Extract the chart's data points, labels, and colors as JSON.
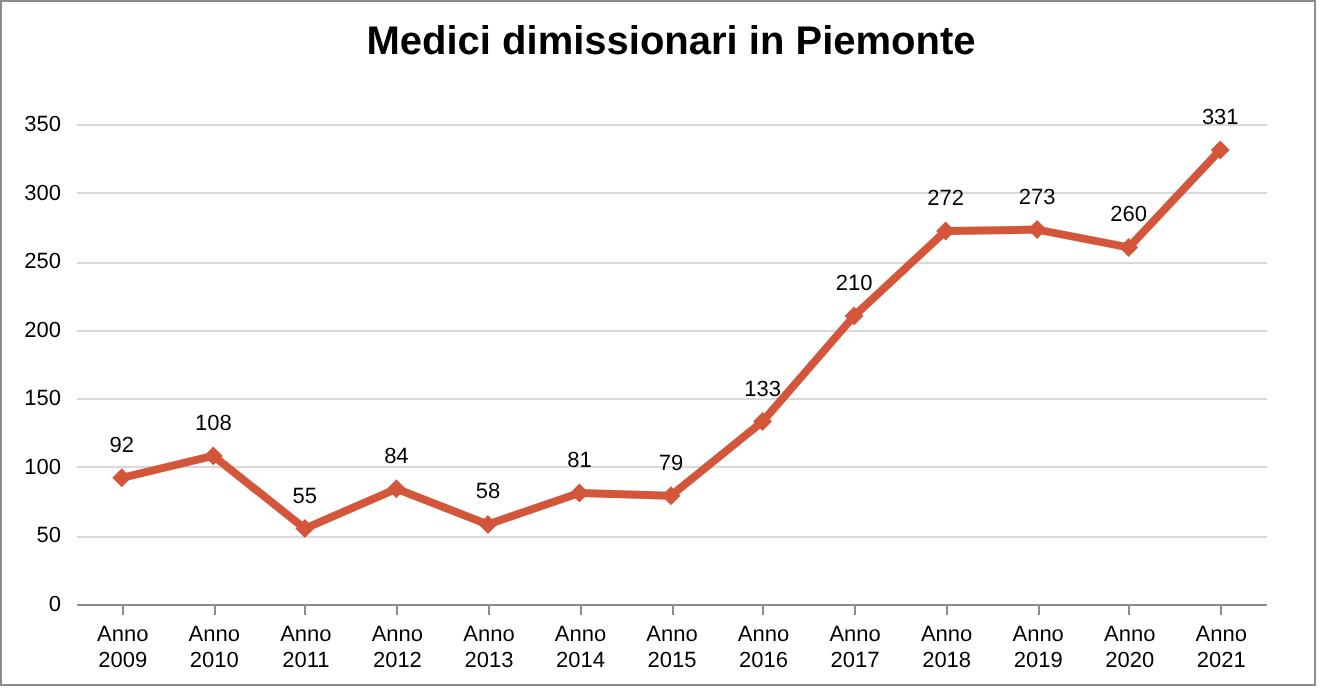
{
  "chart_data": {
    "type": "line",
    "title": "Medici dimissionari in Piemonte",
    "categories": [
      "Anno 2009",
      "Anno 2010",
      "Anno 2011",
      "Anno 2012",
      "Anno 2013",
      "Anno 2014",
      "Anno 2015",
      "Anno 2016",
      "Anno 2017",
      "Anno 2018",
      "Anno 2019",
      "Anno 2020",
      "Anno 2021"
    ],
    "series": [
      {
        "color": "#d4563a",
        "values": [
          92,
          108,
          55,
          84,
          58,
          81,
          79,
          133,
          210,
          272,
          273,
          260,
          331
        ]
      }
    ],
    "ylim": [
      0,
      350
    ],
    "yticks": [
      0,
      50,
      100,
      150,
      200,
      250,
      300,
      350
    ],
    "grid": "y",
    "marker": "diamond",
    "line_style": "solid",
    "data_labels": true
  }
}
